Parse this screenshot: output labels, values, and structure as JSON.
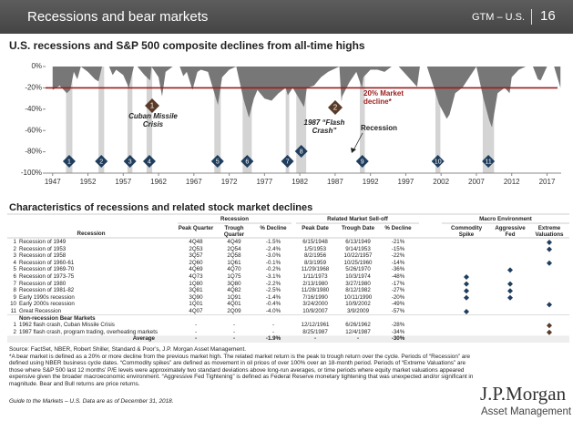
{
  "header": {
    "title": "Recessions and bear markets",
    "section": "GTM – U.S.",
    "page": "16"
  },
  "chart_data": {
    "type": "area",
    "title": "U.S. recessions and S&P 500 composite declines from all-time highs",
    "x": [
      1947,
      1948,
      1949,
      1949.5,
      1950,
      1950.5,
      1951,
      1952,
      1953,
      1953.5,
      1954,
      1955,
      1955.5,
      1956,
      1957,
      1957.8,
      1958.5,
      1959,
      1960,
      1960.8,
      1961,
      1962,
      1962.5,
      1963,
      1964,
      1965,
      1965.5,
      1966,
      1966.8,
      1967.5,
      1968,
      1969,
      1970.4,
      1971,
      1972,
      1973,
      1973.5,
      1974,
      1974.8,
      1975.5,
      1976,
      1977,
      1978,
      1979,
      1980,
      1980.3,
      1981,
      1982.6,
      1983,
      1984,
      1985,
      1986,
      1987.6,
      1987.9,
      1988,
      1989,
      1990,
      1990.8,
      1991,
      1992,
      1993,
      1994,
      1995,
      1996,
      1998.6,
      1999,
      2000,
      2001,
      2001.7,
      2002.8,
      2003.2,
      2004,
      2005,
      2006,
      2007,
      2008,
      2008.8,
      2009.2,
      2010,
      2011,
      2011.7,
      2012,
      2013,
      2014,
      2015,
      2015.7,
      2016.1,
      2017,
      2018,
      2018.9
    ],
    "values": [
      -22,
      -18,
      -25,
      -22,
      -5,
      -12,
      0,
      -5,
      -12,
      -14,
      0,
      0,
      -8,
      -3,
      -8,
      -20,
      0,
      0,
      -8,
      -13,
      0,
      -10,
      -28,
      -5,
      0,
      0,
      -9,
      -5,
      -22,
      -5,
      -3,
      -5,
      -36,
      -10,
      -3,
      0,
      -15,
      -30,
      -48,
      -30,
      -22,
      -30,
      -32,
      -25,
      -20,
      -27,
      -20,
      -38,
      -20,
      -18,
      -10,
      -5,
      0,
      -33,
      -28,
      -15,
      -5,
      -20,
      -10,
      -3,
      -3,
      -5,
      0,
      0,
      -19,
      0,
      0,
      -20,
      -35,
      -49,
      -45,
      -25,
      -20,
      -10,
      0,
      -30,
      -50,
      -57,
      -25,
      -20,
      -25,
      -10,
      -3,
      0,
      0,
      -12,
      -13,
      0,
      0,
      -20
    ],
    "color": "#777777",
    "xlim": [
      1946,
      2019
    ],
    "ylim": [
      -100,
      0
    ],
    "xticks": [
      1947,
      1952,
      1957,
      1962,
      1967,
      1972,
      1977,
      1982,
      1987,
      1992,
      1997,
      2002,
      2007,
      2012,
      2017
    ],
    "yticks": [
      {
        "value": 0,
        "label": "0%"
      },
      {
        "value": -20,
        "label": "-20%"
      },
      {
        "value": -40,
        "label": "-40%"
      },
      {
        "value": -60,
        "label": "-60%"
      },
      {
        "value": -80,
        "label": "-80%"
      },
      {
        "value": -100,
        "label": "-100%"
      }
    ],
    "recession_color": "#d4d4d4",
    "recessions": [
      {
        "start": 1948.9,
        "end": 1949.8,
        "label": "1"
      },
      {
        "start": 1953.5,
        "end": 1954.3,
        "label": "2"
      },
      {
        "start": 1957.6,
        "end": 1958.3,
        "label": "3"
      },
      {
        "start": 1960.3,
        "end": 1961.1,
        "label": "4"
      },
      {
        "start": 1969.9,
        "end": 1970.8,
        "label": "5"
      },
      {
        "start": 1973.9,
        "end": 1975.2,
        "label": "6"
      },
      {
        "start": 1980.0,
        "end": 1980.5,
        "label": "7"
      },
      {
        "start": 1981.5,
        "end": 1982.9,
        "label": "8"
      },
      {
        "start": 1990.5,
        "end": 1991.2,
        "label": "9"
      },
      {
        "start": 2001.2,
        "end": 2001.9,
        "label": "10"
      },
      {
        "start": 2007.9,
        "end": 2009.5,
        "label": "11"
      }
    ],
    "marker_color": "#1f3d5c",
    "threshold": {
      "value": -20,
      "label": "20% Market decline*",
      "color": "#9c1c1c"
    },
    "events": [
      {
        "label": "1",
        "text": "Cuban Missile Crisis"
      },
      {
        "label": "2",
        "text": "1987 “Flash Crash”"
      }
    ],
    "event_color": "#5a3a28",
    "recession_label": "Recession"
  },
  "table": {
    "title": "Characteristics of recessions and related stock market declines",
    "groups": [
      "Recession",
      "Related Market Sell-off",
      "Macro Environment"
    ],
    "columns": [
      "Recession",
      "Peak Quarter",
      "Trough Quarter",
      "% Decline",
      "Peak Date",
      "Trough Date",
      "% Decline",
      "Commodity Spike",
      "Aggressive Fed",
      "Extreme Valuations"
    ],
    "rows": [
      {
        "num": "1",
        "name": "Recession of 1949",
        "cells": [
          "4Q48",
          "4Q49",
          "-1.5%",
          "6/15/1948",
          "6/13/1949",
          "-21%"
        ],
        "flags": [
          false,
          false,
          true
        ]
      },
      {
        "num": "2",
        "name": "Recession of 1953",
        "cells": [
          "2Q53",
          "2Q54",
          "-2.4%",
          "1/5/1953",
          "9/14/1953",
          "-15%"
        ],
        "flags": [
          false,
          false,
          true
        ]
      },
      {
        "num": "3",
        "name": "Recession of 1958",
        "cells": [
          "3Q57",
          "2Q58",
          "-3.0%",
          "8/2/1956",
          "10/22/1957",
          "-22%"
        ],
        "flags": [
          false,
          false,
          false
        ]
      },
      {
        "num": "4",
        "name": "Recession of 1960-61",
        "cells": [
          "2Q60",
          "1Q61",
          "-0.1%",
          "8/3/1959",
          "10/25/1960",
          "-14%"
        ],
        "flags": [
          false,
          false,
          true
        ]
      },
      {
        "num": "5",
        "name": "Recession of 1969-70",
        "cells": [
          "4Q69",
          "4Q70",
          "-0.2%",
          "11/29/1968",
          "5/26/1970",
          "-36%"
        ],
        "flags": [
          false,
          true,
          false
        ]
      },
      {
        "num": "6",
        "name": "Recession of 1973-75",
        "cells": [
          "4Q73",
          "1Q75",
          "-3.1%",
          "1/11/1973",
          "10/3/1974",
          "-48%"
        ],
        "flags": [
          true,
          false,
          false
        ]
      },
      {
        "num": "7",
        "name": "Recession of 1980",
        "cells": [
          "1Q80",
          "3Q80",
          "-2.2%",
          "2/13/1980",
          "3/27/1980",
          "-17%"
        ],
        "flags": [
          true,
          true,
          false
        ]
      },
      {
        "num": "8",
        "name": "Recession of 1981-82",
        "cells": [
          "3Q81",
          "4Q82",
          "-2.5%",
          "11/28/1980",
          "8/12/1982",
          "-27%"
        ],
        "flags": [
          true,
          true,
          false
        ]
      },
      {
        "num": "9",
        "name": "Early 1990s recession",
        "cells": [
          "3Q90",
          "1Q91",
          "-1.4%",
          "7/16/1990",
          "10/11/1990",
          "-20%"
        ],
        "flags": [
          true,
          true,
          false
        ]
      },
      {
        "num": "10",
        "name": "Early 2000s recession",
        "cells": [
          "1Q01",
          "4Q01",
          "-0.4%",
          "3/24/2000",
          "10/9/2002",
          "-49%"
        ],
        "flags": [
          false,
          false,
          true
        ]
      },
      {
        "num": "11",
        "name": "Great Recession",
        "cells": [
          "4Q07",
          "2Q09",
          "-4.0%",
          "10/9/2007",
          "3/9/2009",
          "-57%"
        ],
        "flags": [
          true,
          false,
          false
        ]
      }
    ],
    "nonrecession_title": "Non-recession Bear Markets",
    "nonrecession_rows": [
      {
        "num": "1",
        "name": "1962 flash crash, Cuban Missile Crisis",
        "cells": [
          "-",
          "-",
          "-",
          "12/12/1961",
          "6/26/1962",
          "-28%"
        ],
        "flags": [
          false,
          false,
          true
        ]
      },
      {
        "num": "2",
        "name": "1987 flash crash, program trading, overheating markets",
        "cells": [
          "-",
          "-",
          "-",
          "8/25/1987",
          "12/4/1987",
          "-34%"
        ],
        "flags": [
          false,
          false,
          true
        ]
      }
    ],
    "average": {
      "name": "Average",
      "cells": [
        "-",
        "-",
        "-1.9%",
        "-",
        "-",
        "-30%"
      ]
    }
  },
  "footer": {
    "source": "Source: FactSet, NBER, Robert Shiller, Standard & Poor’s, J.P. Morgan Asset Management.",
    "note": "*A bear market is defined as a 20% or more decline from the previous market high. The related market return is the peak to trough return over the cycle. Periods of “Recession” are defined using NBER business cycle dates. “Commodity spikes” are defined as movement in oil prices of over 100% over an 18-month period. Periods of “Extreme Valuations” are those where S&P 500 last 12 months’ P/E levels were approximately two standard deviations above long-run averages, or time periods where equity market valuations appeared expensive given the broader macroeconomic environment. “Aggressive Fed Tightening” is defined as Federal Reserve monetary tightening that was unexpected and/or significant in magnitude. Bear and Bull returns are price returns.",
    "guide": "Guide to the Markets – U.S. Data are as of December 31, 2018.",
    "logo": "J.P.Morgan",
    "logo_sub": "Asset Management"
  }
}
